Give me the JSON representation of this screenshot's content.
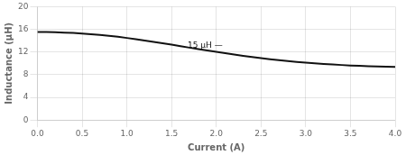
{
  "chart_data": {
    "type": "line",
    "xlabel": "Current (A)",
    "ylabel": "Inductance (μH)",
    "x": [
      0.0,
      0.1,
      0.2,
      0.3,
      0.4,
      0.5,
      0.6,
      0.7,
      0.8,
      0.9,
      1.0,
      1.1,
      1.2,
      1.3,
      1.4,
      1.5,
      1.6,
      1.7,
      1.8,
      1.9,
      2.0,
      2.1,
      2.2,
      2.3,
      2.4,
      2.5,
      2.6,
      2.7,
      2.8,
      2.9,
      3.0,
      3.1,
      3.2,
      3.3,
      3.4,
      3.5,
      3.6,
      3.7,
      3.8,
      3.9,
      4.0
    ],
    "values": [
      15.55,
      15.52,
      15.48,
      15.43,
      15.36,
      15.27,
      15.15,
      15.02,
      14.86,
      14.68,
      14.48,
      14.26,
      14.03,
      13.79,
      13.54,
      13.29,
      13.03,
      12.77,
      12.52,
      12.27,
      12.02,
      11.78,
      11.55,
      11.33,
      11.12,
      10.92,
      10.74,
      10.57,
      10.41,
      10.26,
      10.13,
      10.01,
      9.9,
      9.8,
      9.71,
      9.63,
      9.56,
      9.5,
      9.45,
      9.4,
      9.36
    ],
    "color": "#111111",
    "xlim": [
      0,
      4.0
    ],
    "ylim": [
      0,
      20
    ],
    "xticks": [
      {
        "value": 0,
        "label": "0.0"
      },
      0.5,
      {
        "value": 1.0,
        "label": "1.0"
      },
      1.5,
      {
        "value": 2.0,
        "label": "2.0"
      },
      2.5,
      {
        "value": 3.0,
        "label": "3.0"
      },
      3.5,
      {
        "value": 4.0,
        "label": "4.0"
      }
    ],
    "yticks": [
      0,
      4,
      8,
      12,
      16,
      20
    ],
    "annotations": [
      {
        "text": "15 μH —",
        "x": 1.68,
        "y": 13.1
      }
    ],
    "grid": true
  }
}
